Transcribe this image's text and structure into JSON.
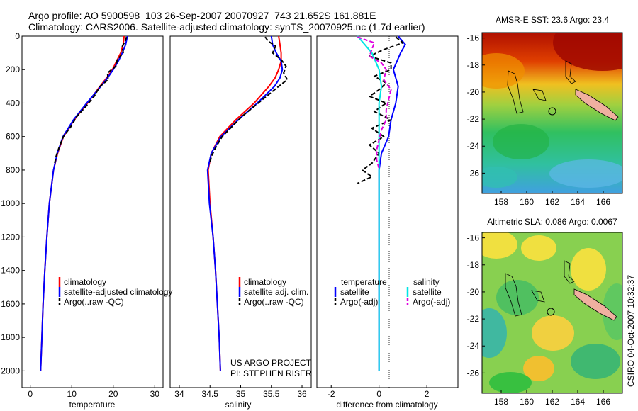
{
  "title": {
    "line1": "Argo profile: AO 5900598_103 26-Sep-2007 20070927_743 21.652S 161.881E",
    "line2": "Climatology: CARS2006. Satellite-adjusted climatology: synTS_20070925.nc (1.7d earlier)"
  },
  "credit": {
    "line1": "US ARGO PROJECT",
    "line2": "PI: STEPHEN RISER"
  },
  "side_stamp": "CSIRO 04-Oct-2007 10:32:37",
  "colors": {
    "climatology": "#ff0000",
    "satellite": "#0000ff",
    "argo": "#000000",
    "sat_salinity": "#00e5e5",
    "argo_salinity": "#e000e0"
  },
  "panels": {
    "temperature": {
      "xlabel": "temperature",
      "xticks": [
        0,
        10,
        20,
        30
      ],
      "legend": [
        "climatology",
        "satellite-adjusted climatology",
        "Argo(..raw -QC)"
      ]
    },
    "salinity": {
      "xlabel": "salinity",
      "xticks": [
        34,
        34.5,
        35,
        35.5,
        36
      ],
      "legend": [
        "climatology",
        "satellite adj. clim.",
        "Argo(..raw -QC)"
      ]
    },
    "difference": {
      "xlabel": "difference from climatology",
      "xticks": [
        -2,
        0,
        2
      ],
      "legend_headers": [
        "temperature",
        "salinity"
      ],
      "legend_temp": [
        "satellite",
        "Argo(-adj)"
      ],
      "legend_sal": [
        "satellite",
        "Argo(-adj)"
      ]
    }
  },
  "depth_axis": {
    "ticks": [
      0,
      200,
      400,
      600,
      800,
      1000,
      1200,
      1400,
      1600,
      1800,
      2000
    ],
    "ylim": [
      0,
      2100
    ]
  },
  "maps": {
    "sst": {
      "title": "AMSR-E SST: 23.6 Argo: 23.4",
      "lat_ticks": [
        -16,
        -18,
        -20,
        -22,
        -24,
        -26
      ],
      "lon_ticks": [
        158,
        160,
        162,
        164,
        166
      ]
    },
    "sla": {
      "title": "Altimetric SLA: 0.086 Argo: 0.0067",
      "lat_ticks": [
        -16,
        -18,
        -20,
        -22,
        -24,
        -26
      ],
      "lon_ticks": [
        158,
        160,
        162,
        164,
        166
      ]
    }
  },
  "chart_data": [
    {
      "type": "line",
      "title": "",
      "xlabel": "temperature",
      "ylabel": "",
      "xlim": [
        -2,
        32
      ],
      "ylim": [
        2100,
        0
      ],
      "series": [
        {
          "name": "climatology",
          "depth": [
            0,
            50,
            100,
            150,
            200,
            250,
            300,
            400,
            500,
            600,
            700,
            800,
            1000,
            1200,
            1400,
            1600,
            1800,
            2000
          ],
          "values": [
            22.6,
            22.4,
            21.8,
            20.8,
            19.8,
            18.4,
            16.8,
            13.8,
            10.6,
            8.0,
            6.6,
            5.6,
            4.6,
            4.0,
            3.5,
            3.1,
            2.8,
            2.5
          ]
        },
        {
          "name": "satellite-adjusted climatology",
          "depth": [
            0,
            50,
            100,
            150,
            200,
            250,
            300,
            400,
            500,
            600,
            700,
            800,
            1000,
            1200,
            1400,
            1600,
            1800,
            2000
          ],
          "values": [
            23.4,
            23.0,
            22.2,
            21.2,
            20.0,
            18.6,
            17.0,
            13.6,
            10.4,
            7.9,
            6.5,
            5.6,
            4.6,
            4.0,
            3.5,
            3.1,
            2.8,
            2.5
          ]
        },
        {
          "name": "Argo(..raw -QC)",
          "depth": [
            5,
            30,
            60,
            100,
            140,
            180,
            220,
            260,
            300,
            360,
            420,
            480,
            540,
            600,
            660,
            720,
            760
          ],
          "values": [
            23.2,
            22.9,
            22.2,
            22.4,
            21.0,
            20.6,
            18.6,
            18.8,
            16.8,
            15.4,
            13.4,
            11.2,
            9.8,
            8.0,
            7.0,
            6.2,
            5.9
          ]
        }
      ]
    },
    {
      "type": "line",
      "title": "",
      "xlabel": "salinity",
      "ylabel": "",
      "xlim": [
        33.85,
        36.15
      ],
      "ylim": [
        2100,
        0
      ],
      "series": [
        {
          "name": "climatology",
          "depth": [
            0,
            50,
            100,
            150,
            200,
            250,
            300,
            400,
            500,
            600,
            700,
            800,
            1000,
            1200,
            1400,
            1600,
            1800,
            2000
          ],
          "values": [
            35.62,
            35.64,
            35.66,
            35.66,
            35.62,
            35.56,
            35.46,
            35.22,
            34.92,
            34.66,
            34.52,
            34.47,
            34.5,
            34.55,
            34.59,
            34.62,
            34.65,
            34.67
          ]
        },
        {
          "name": "satellite adj. clim.",
          "depth": [
            0,
            50,
            100,
            150,
            200,
            250,
            300,
            400,
            500,
            600,
            700,
            800,
            1000,
            1200,
            1400,
            1600,
            1800,
            2000
          ],
          "values": [
            35.5,
            35.52,
            35.58,
            35.66,
            35.68,
            35.64,
            35.55,
            35.27,
            34.96,
            34.68,
            34.52,
            34.46,
            34.49,
            34.55,
            34.59,
            34.62,
            34.65,
            34.67
          ]
        },
        {
          "name": "Argo(..raw -QC)",
          "depth": [
            5,
            30,
            60,
            100,
            140,
            180,
            220,
            260,
            300,
            360,
            420,
            480,
            540,
            600,
            660,
            720,
            760
          ],
          "values": [
            35.4,
            35.45,
            35.57,
            35.52,
            35.66,
            35.74,
            35.7,
            35.76,
            35.62,
            35.42,
            35.22,
            35.02,
            34.86,
            34.7,
            34.6,
            34.52,
            34.5
          ]
        }
      ]
    },
    {
      "type": "line",
      "title": "",
      "xlabel": "difference from climatology",
      "ylabel": "",
      "xlim": [
        -2.6,
        3.3
      ],
      "ylim": [
        2100,
        0
      ],
      "series": [
        {
          "name": "temperature satellite",
          "depth": [
            0,
            50,
            100,
            200,
            300,
            400,
            500,
            600,
            700,
            800,
            1000,
            1400,
            2000
          ],
          "values": [
            0.8,
            1.1,
            0.9,
            0.6,
            0.8,
            0.7,
            0.5,
            0.4,
            0.1,
            0.0,
            0.0,
            0.0,
            0.0
          ]
        },
        {
          "name": "temperature Argo(-adj)",
          "depth": [
            5,
            40,
            80,
            120,
            160,
            200,
            240,
            280,
            320,
            360,
            400,
            450,
            500,
            550,
            600,
            650,
            700,
            760,
            800,
            840,
            880
          ],
          "values": [
            0.7,
            1.0,
            0.2,
            -0.4,
            0.5,
            0.5,
            -0.2,
            0.3,
            0.0,
            -0.4,
            0.3,
            -0.2,
            0.5,
            -0.3,
            0.2,
            -0.4,
            0.0,
            -0.3,
            -0.7,
            -0.3,
            -0.9
          ]
        },
        {
          "name": "salinity satellite",
          "depth": [
            0,
            50,
            100,
            200,
            300,
            400,
            500,
            600,
            700,
            800,
            1000,
            1400,
            2000
          ],
          "values": [
            -0.9,
            -0.6,
            -0.3,
            0.0,
            0.1,
            0.0,
            0.0,
            0.0,
            0.0,
            0.0,
            0.0,
            0.0,
            0.0
          ]
        },
        {
          "name": "salinity Argo(-adj)",
          "depth": [
            5,
            40,
            80,
            120,
            160,
            200,
            260,
            320,
            380,
            440,
            500,
            560,
            620,
            680,
            740,
            790
          ],
          "values": [
            -0.9,
            -0.2,
            -0.3,
            -0.4,
            0.1,
            0.3,
            0.2,
            0.5,
            0.4,
            0.3,
            0.3,
            0.1,
            0.0,
            -0.1,
            -0.1,
            0.0
          ]
        }
      ]
    }
  ]
}
